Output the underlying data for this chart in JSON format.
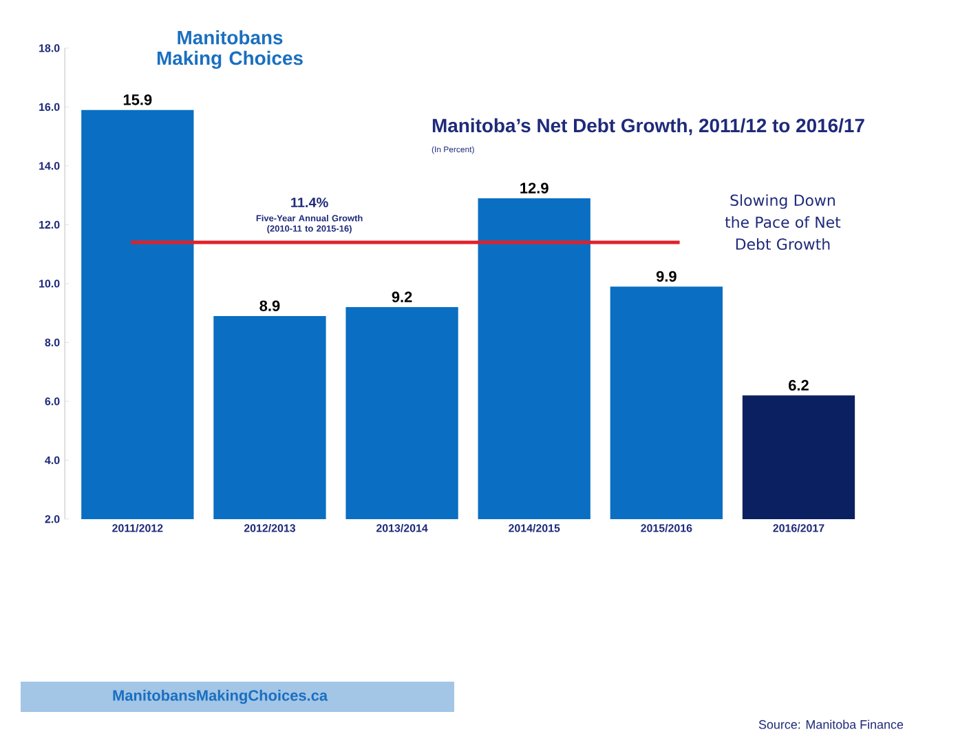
{
  "chart_data": {
    "type": "bar",
    "title": "Manitoba’s Net Debt Growth, 2011/12 to 2016/17",
    "subtitle": "(In Percent)",
    "categories": [
      "2011/2012",
      "2012/2013",
      "2013/2014",
      "2014/2015",
      "2015/2016",
      "2016/2017"
    ],
    "values": [
      15.9,
      8.9,
      9.2,
      12.9,
      9.9,
      6.2
    ],
    "colors": [
      "#0a6fc2",
      "#0a6fc2",
      "#0a6fc2",
      "#0a6fc2",
      "#0a6fc2",
      "#0b2060"
    ],
    "value_labels": [
      "15.9",
      "8.9",
      "9.2",
      "12.9",
      "9.9",
      "6.2"
    ],
    "ylim": [
      2,
      18
    ],
    "yticks": [
      {
        "value": 2,
        "label": "2.0"
      },
      {
        "value": 4,
        "label": "4.0"
      },
      {
        "value": 6,
        "label": "6.0"
      },
      {
        "value": 8,
        "label": "8.0"
      },
      {
        "value": 10,
        "label": "10.0"
      },
      {
        "value": 12,
        "label": "12.0"
      },
      {
        "value": 14,
        "label": "14.0"
      },
      {
        "value": 16,
        "label": "16.0"
      },
      {
        "value": 18,
        "label": "18.0"
      }
    ],
    "ref_lines": [
      {
        "axis": "y",
        "value": 11.4,
        "label": "11.4%",
        "color": "#e0202a"
      }
    ],
    "annotations": [
      "Five-Year Annual Growth (2010-11 to 2015-16)",
      "Slowing Down the Pace of Net Debt Growth",
      "Manitobans Making Choices",
      "ManitobansMakingChoices.ca",
      "Source: Manitoba Finance"
    ],
    "grid": false
  }
}
